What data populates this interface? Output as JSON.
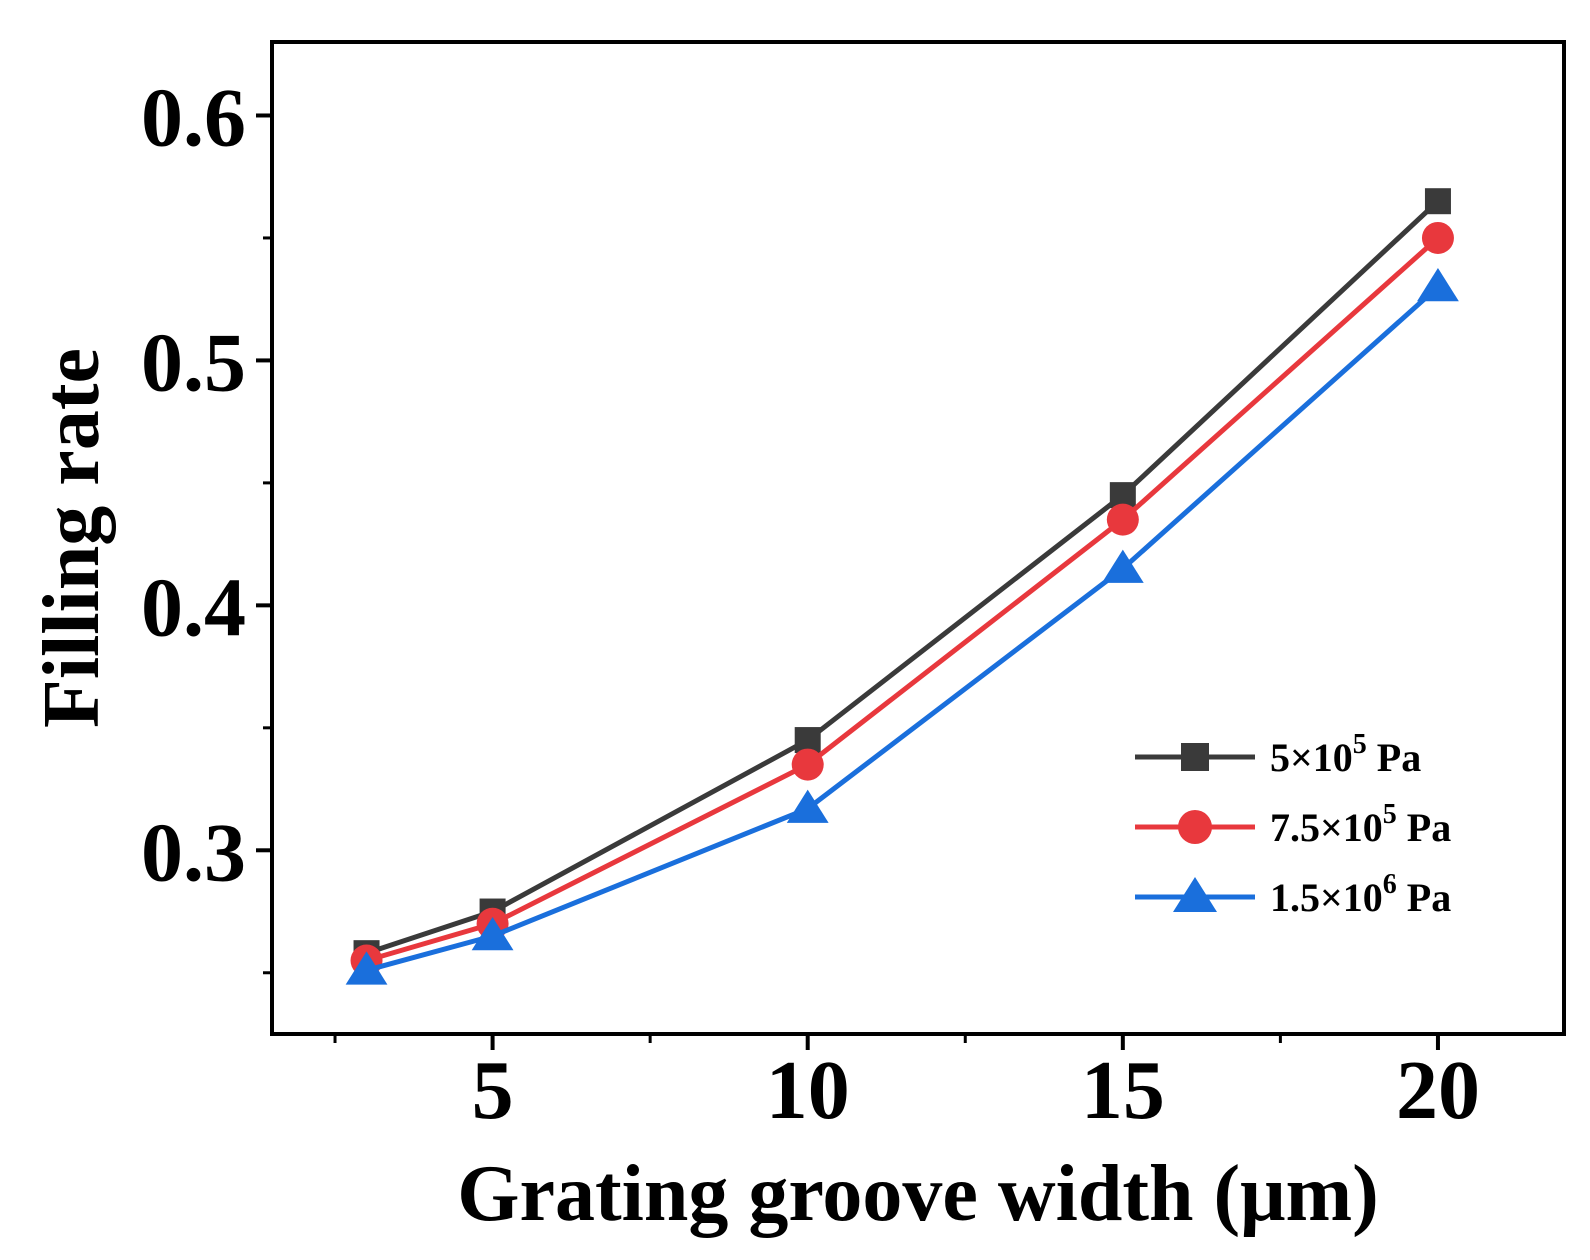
{
  "chart_data": {
    "type": "line",
    "title": "",
    "xlabel": "Grating groove width (μm)",
    "ylabel": "Filling rate",
    "x": [
      3,
      5,
      10,
      15,
      20
    ],
    "xlim": [
      1.5,
      22
    ],
    "ylim": [
      0.225,
      0.63
    ],
    "xticks": [
      5,
      10,
      15,
      20
    ],
    "xtick_labels": [
      "5",
      "10",
      "15",
      "20"
    ],
    "yticks": [
      0.3,
      0.4,
      0.5,
      0.6
    ],
    "ytick_labels": [
      "0.3",
      "0.4",
      "0.5",
      "0.6"
    ],
    "grid": false,
    "legend_position": "bottom-right",
    "series": [
      {
        "name": "5×10⁵ Pa",
        "base": "5×10",
        "exp": "5",
        "unit": " Pa",
        "marker": "square",
        "color": "#3a3a3a",
        "values": [
          0.258,
          0.275,
          0.345,
          0.445,
          0.565
        ]
      },
      {
        "name": "7.5×10⁵ Pa",
        "base": "7.5×10",
        "exp": "5",
        "unit": " Pa",
        "marker": "circle",
        "color": "#e8383d",
        "values": [
          0.255,
          0.27,
          0.335,
          0.435,
          0.55
        ]
      },
      {
        "name": "1.5×10⁶ Pa",
        "base": "1.5×10",
        "exp": "6",
        "unit": " Pa",
        "marker": "triangle",
        "color": "#1a6fdc",
        "values": [
          0.251,
          0.265,
          0.317,
          0.415,
          0.53
        ]
      }
    ]
  }
}
